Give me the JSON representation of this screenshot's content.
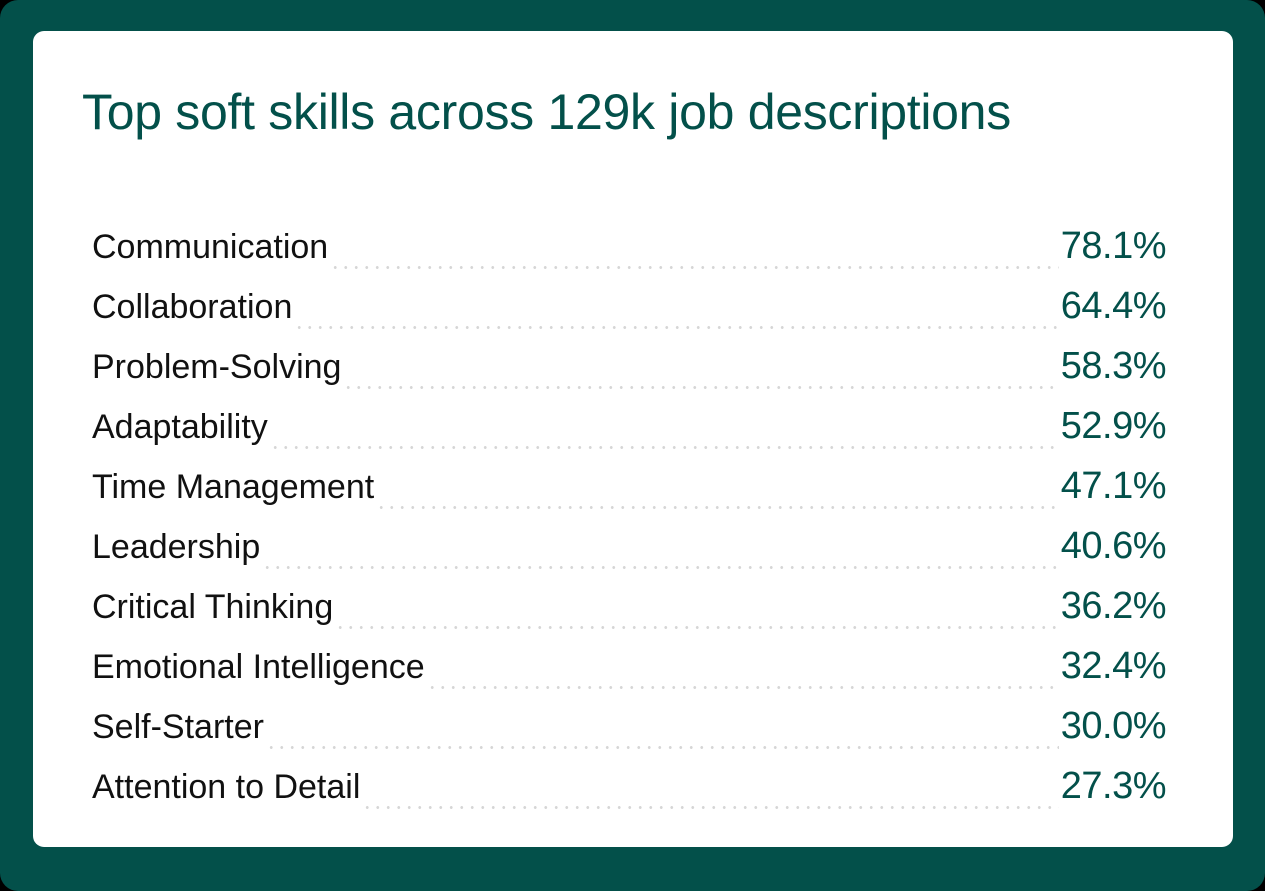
{
  "title": "Top soft skills across 129k job descriptions",
  "colors": {
    "frame": "#03504a",
    "card": "#ffffff",
    "accent": "#03504a",
    "label": "#111111",
    "leader": "#d6d6d6"
  },
  "rows": [
    {
      "label": "Communication",
      "value": "78.1%"
    },
    {
      "label": "Collaboration",
      "value": "64.4%"
    },
    {
      "label": "Problem-Solving",
      "value": "58.3%"
    },
    {
      "label": "Adaptability",
      "value": "52.9%"
    },
    {
      "label": "Time Management",
      "value": "47.1%"
    },
    {
      "label": "Leadership",
      "value": "40.6%"
    },
    {
      "label": "Critical Thinking",
      "value": "36.2%"
    },
    {
      "label": "Emotional Intelligence",
      "value": "32.4%"
    },
    {
      "label": "Self-Starter",
      "value": "30.0%"
    },
    {
      "label": "Attention to Detail",
      "value": "27.3%"
    }
  ],
  "chart_data": {
    "type": "table",
    "title": "Top soft skills across 129k job descriptions",
    "categories": [
      "Communication",
      "Collaboration",
      "Problem-Solving",
      "Adaptability",
      "Time Management",
      "Leadership",
      "Critical Thinking",
      "Emotional Intelligence",
      "Self-Starter",
      "Attention to Detail"
    ],
    "values": [
      78.1,
      64.4,
      58.3,
      52.9,
      47.1,
      40.6,
      36.2,
      32.4,
      30.0,
      27.3
    ],
    "unit": "%",
    "xlabel": "",
    "ylabel": "",
    "legend": null,
    "grid": false
  }
}
